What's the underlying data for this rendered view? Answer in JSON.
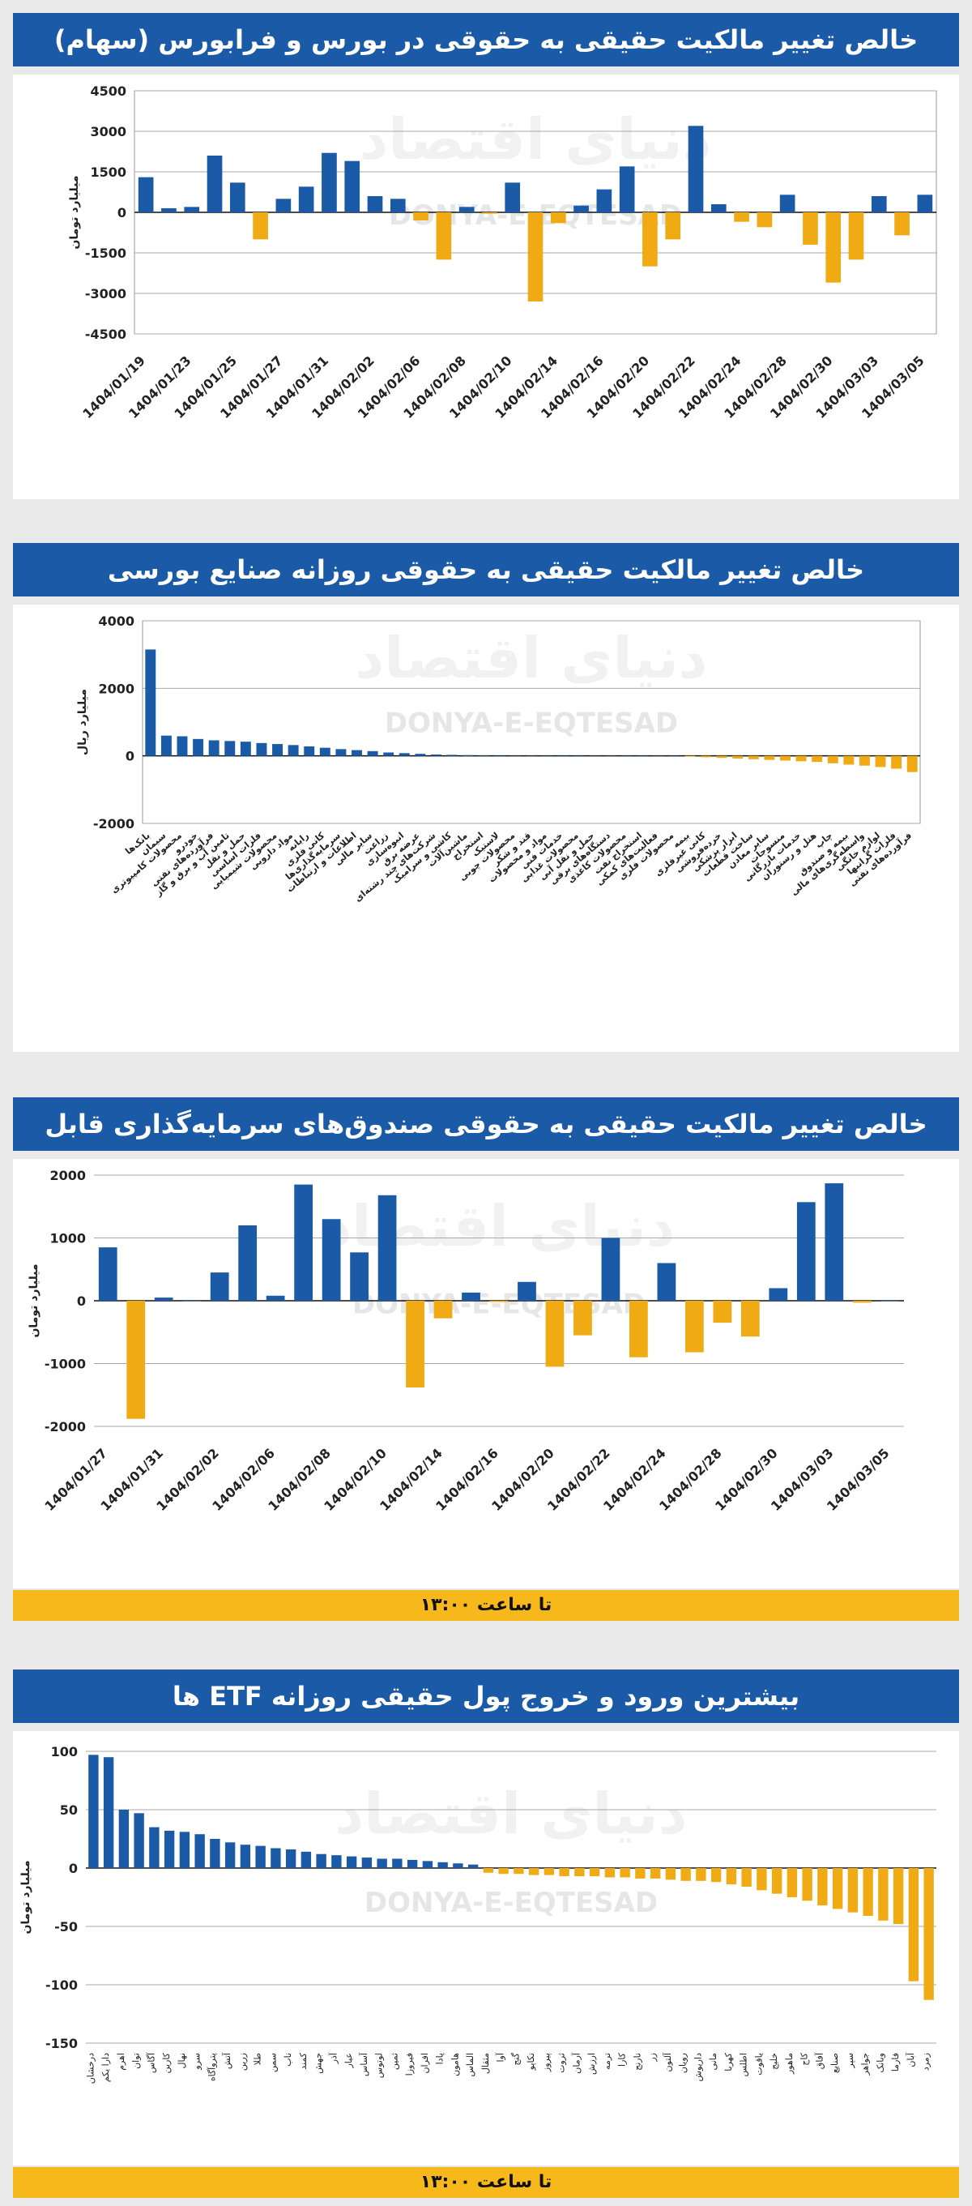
{
  "colors": {
    "positive": "#1b5aa7",
    "negative": "#f0ab14",
    "header": "#1b5aa7",
    "footer": "#f6b81b",
    "watermark": "#c9c9c9"
  },
  "watermark": {
    "text": "DONYA-E-EQTESAD",
    "logo": "دنیای اقتصاد"
  },
  "charts": {
    "c1": {
      "title": "خالص تغییر مالکیت حقیقی به حقوقی در بورس و فرابورس (سهام)",
      "ylabel": "میلیارد تومان"
    },
    "c2": {
      "title": "خالص تغییر مالکیت حقیقی به حقوقی روزانه صنایع بورسی",
      "ylabel": "میلیارد ریال"
    },
    "c3": {
      "title": "خالص تغییر مالکیت حقیقی به حقوقی صندوق‌های سرمایه‌گذاری قابل معامله (ETF)",
      "ylabel": "میلیارد تومان",
      "footer": "تا ساعت ۱۳:۰۰"
    },
    "c4": {
      "title": "بیشترین ورود و خروج پول حقیقی روزانه ETF ها",
      "ylabel": "میلیارد تومان",
      "footer": "تا ساعت ۱۳:۰۰"
    }
  },
  "chart_data": [
    {
      "type": "bar",
      "ylim": [
        -4500,
        4500
      ],
      "ticks": [
        4500,
        3000,
        1500,
        0,
        -1500,
        -3000,
        -4500
      ],
      "tick_labels": [
        "4500",
        "3000",
        "1500",
        "0",
        "-1500",
        "-3000",
        "-4500"
      ],
      "categories": [
        "1404/01/19",
        "",
        "1404/01/23",
        "",
        "1404/01/25",
        "",
        "1404/01/27",
        "",
        "1404/01/31",
        "",
        "1404/02/02",
        "",
        "1404/02/06",
        "",
        "1404/02/08",
        "",
        "1404/02/10",
        "",
        "1404/02/14",
        "",
        "1404/02/16",
        "",
        "1404/02/20",
        "",
        "1404/02/22",
        "",
        "1404/02/24",
        "",
        "1404/02/28",
        "",
        "1404/02/30",
        "",
        "1404/03/03",
        "",
        "1404/03/05"
      ],
      "values": [
        1300,
        150,
        200,
        2100,
        1100,
        -1000,
        500,
        950,
        2200,
        1900,
        600,
        500,
        -300,
        -1750,
        200,
        -50,
        1100,
        -3300,
        -400,
        250,
        850,
        1700,
        -2000,
        -1000,
        3200,
        300,
        -350,
        -550,
        650,
        -1200,
        -2600,
        -1750,
        600,
        -850,
        650
      ]
    },
    {
      "type": "bar",
      "ylim": [
        -2000,
        4000
      ],
      "ticks": [
        4000,
        2000,
        0,
        -2000
      ],
      "tick_labels": [
        "4000",
        "2000",
        "0",
        "-2000"
      ],
      "categories": [
        "بانک‌ها",
        "سیمان",
        "محصولات کامپیوتری",
        "خودرو",
        "فرآورده‌های نفتی",
        "تامین آب و برق و گاز",
        "حمل و نقل",
        "فلزات اساسی",
        "محصولات شیمیایی",
        "مواد دارویی",
        "رایانه",
        "کانی فلزی",
        "سرمایه‌گذاری‌ها",
        "اطلاعات و ارتباطات",
        "سایر مالی",
        "زراعت",
        "انبوه‌سازی",
        "عرضه برق",
        "شرکت‌های چند رشته‌ای",
        "کاشی و سرامیک",
        "ماشین‌آلات",
        "استخراج",
        "لاستیک",
        "محصولات چوبی",
        "قند و شکر",
        "مواد و محصولات",
        "خدمات فنی",
        "محصولات غذایی",
        "حمل و نقل آبی",
        "دستگاه‌های برقی",
        "محصولات کاغذی",
        "استخراج نفت",
        "فعالیت‌های کمکی",
        "محصولات فلزی",
        "بیمه",
        "کانی غیرفلزی",
        "خرده‌فروشی",
        "ابزار پزشکی",
        "ساخت قطعات",
        "سایر معادن",
        "منسوجات",
        "خدمات بازرگانی",
        "هتل و رستوران",
        "چاپ",
        "بیمه و صندوق",
        "واسطه‌گری‌های مالی",
        "لوازم خانگی",
        "فلزات گرانبها",
        "فرآورده‌های نفتی"
      ],
      "values": [
        3150,
        600,
        580,
        500,
        460,
        440,
        420,
        380,
        350,
        320,
        280,
        240,
        200,
        170,
        140,
        100,
        80,
        60,
        40,
        30,
        20,
        10,
        0,
        0,
        0,
        0,
        0,
        0,
        0,
        0,
        0,
        0,
        0,
        0,
        -20,
        -40,
        -60,
        -80,
        -100,
        -120,
        -140,
        -160,
        -180,
        -220,
        -260,
        -290,
        -330,
        -380,
        -480
      ]
    },
    {
      "type": "bar",
      "ylim": [
        -2000,
        2000
      ],
      "ticks": [
        2000,
        1000,
        0,
        -1000,
        -2000
      ],
      "tick_labels": [
        "2000",
        "1000",
        "0",
        "-1000",
        "-2000"
      ],
      "categories": [
        "1404/01/27",
        "",
        "1404/01/31",
        "",
        "1404/02/02",
        "",
        "1404/02/06",
        "",
        "1404/02/08",
        "",
        "1404/02/10",
        "",
        "1404/02/14",
        "",
        "1404/02/16",
        "",
        "1404/02/20",
        "",
        "1404/02/22",
        "",
        "1404/02/24",
        "",
        "1404/02/28",
        "",
        "1404/02/30",
        "",
        "1404/03/03",
        "",
        "1404/03/05"
      ],
      "values": [
        850,
        -1880,
        50,
        0,
        450,
        1200,
        80,
        1850,
        1300,
        770,
        1680,
        -1380,
        -280,
        130,
        -20,
        300,
        -1050,
        -550,
        1000,
        -900,
        600,
        -820,
        -350,
        -570,
        200,
        1570,
        1870,
        -30,
        0
      ]
    },
    {
      "type": "bar",
      "ylim": [
        -150,
        100
      ],
      "ticks": [
        100,
        50,
        0,
        -50,
        -100,
        -150
      ],
      "tick_labels": [
        "100",
        "50",
        "0",
        "-50",
        "-100",
        "-150"
      ],
      "categories": [
        "درخشان",
        "دارا یکم",
        "اهرم",
        "توان",
        "آگاس",
        "کارین",
        "نهال",
        "سرو",
        "پتروآگاه",
        "آتش",
        "زرین",
        "طلا",
        "سمن",
        "ناب",
        "کمند",
        "جهش",
        "آذر",
        "عیار",
        "آساس",
        "لوتوس",
        "ثمین",
        "فیروزا",
        "افران",
        "پادا",
        "هامون",
        "الماس",
        "مثقال",
        "آوا",
        "گنج",
        "تکاپو",
        "پیروز",
        "ثروت",
        "آرمان",
        "ارزش",
        "ترمه",
        "کارا",
        "نارنج",
        "زر",
        "آلتون",
        "رویان",
        "داریوش",
        "مانی",
        "کهربا",
        "اطلس",
        "یاقوت",
        "خلیج",
        "ماهور",
        "کاج",
        "آفاق",
        "صنایع",
        "سپر",
        "جواهر",
        "وبانک",
        "فارما",
        "آبان",
        "زمرد"
      ],
      "values": [
        97,
        95,
        50,
        47,
        35,
        32,
        31,
        29,
        25,
        22,
        20,
        19,
        17,
        16,
        14,
        12,
        11,
        10,
        9,
        8,
        8,
        7,
        6,
        5,
        4,
        3,
        -4,
        -5,
        -5,
        -6,
        -6,
        -7,
        -7,
        -7,
        -8,
        -8,
        -9,
        -9,
        -10,
        -11,
        -11,
        -12,
        -14,
        -16,
        -19,
        -22,
        -25,
        -28,
        -32,
        -35,
        -38,
        -41,
        -45,
        -48,
        -97,
        -113
      ]
    }
  ]
}
